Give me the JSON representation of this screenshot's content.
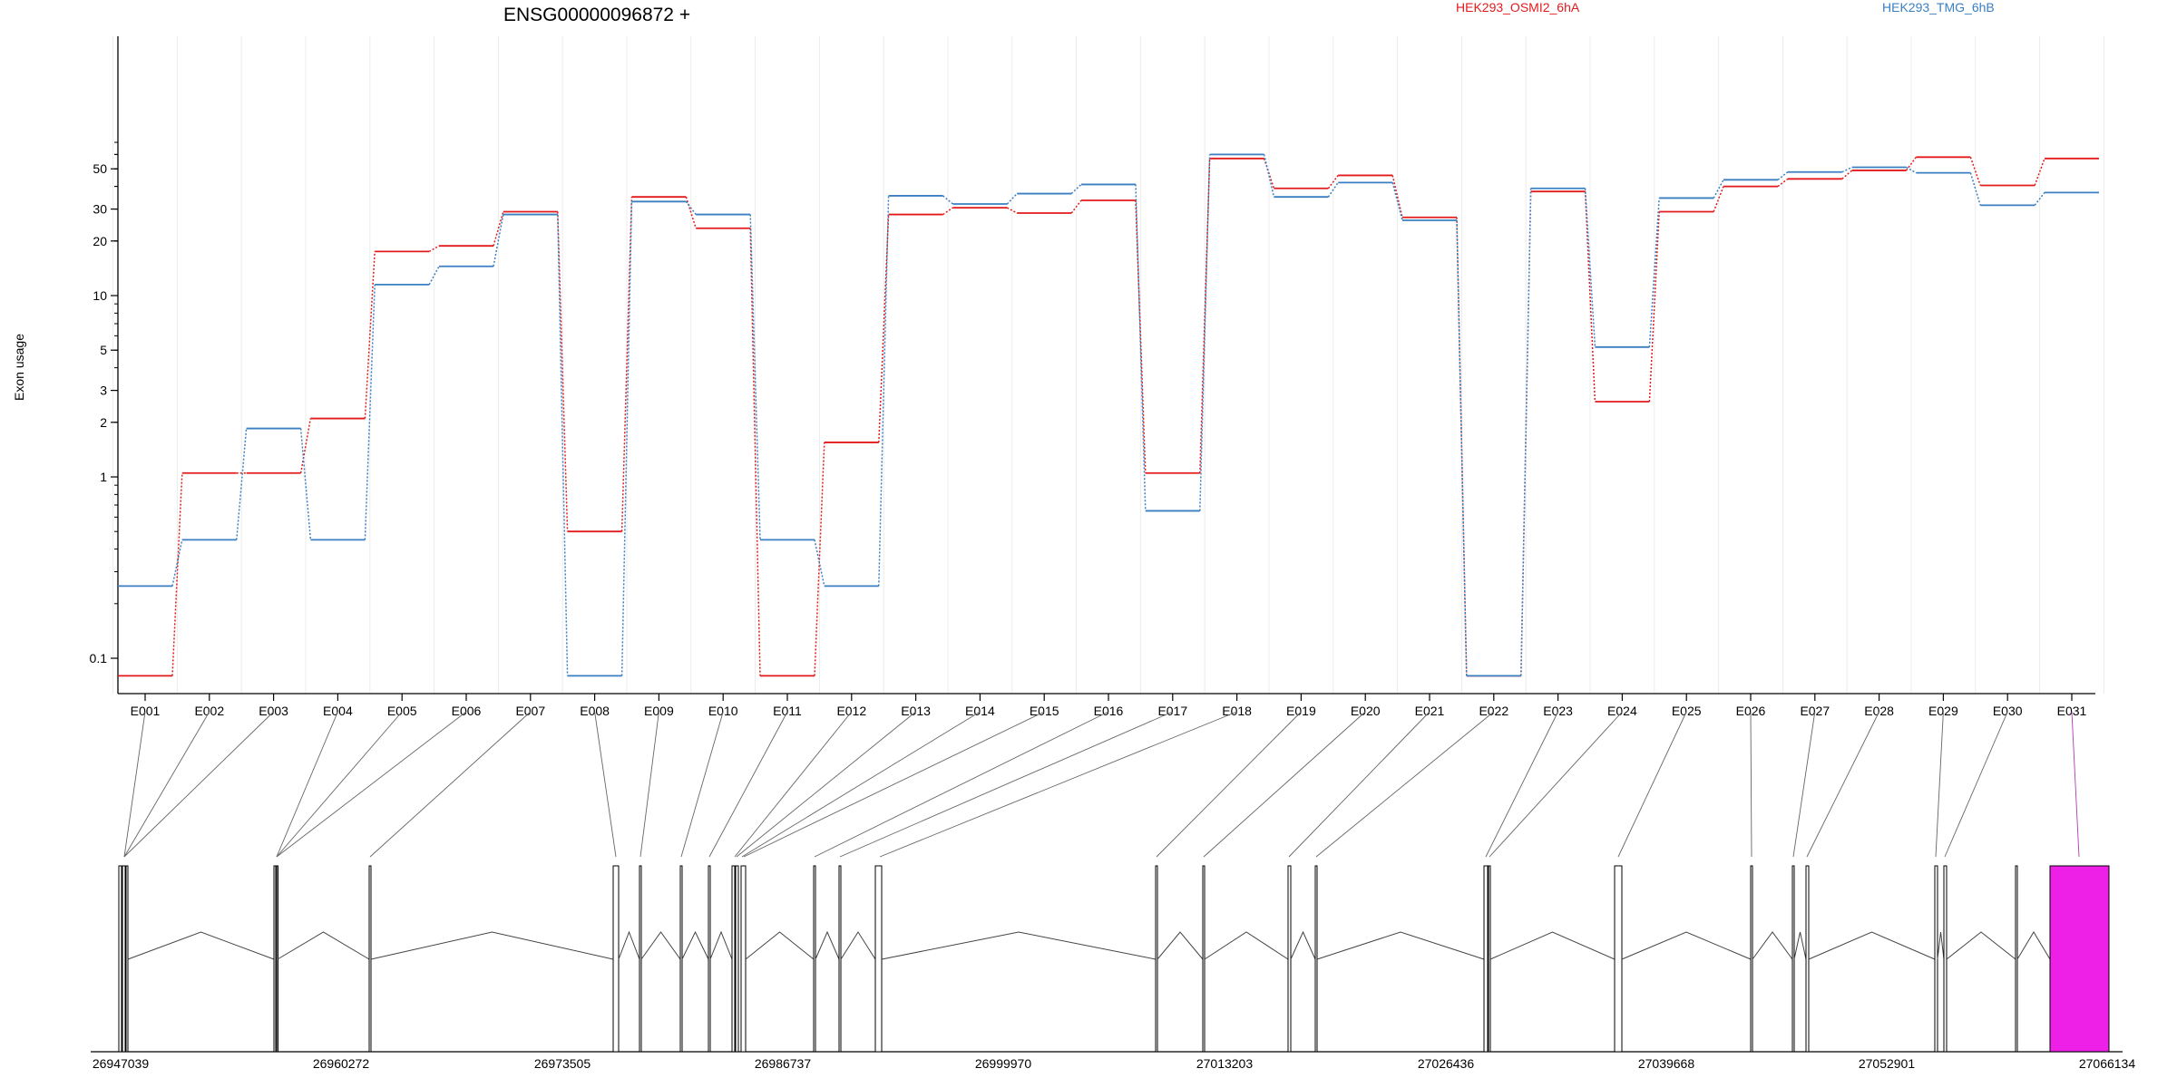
{
  "chart_data": {
    "type": "line",
    "title": "ENSG00000096872 +",
    "ylabel": "Exon usage",
    "xlabel": "",
    "y_scale": "log",
    "ylim": [
      0.08,
      70
    ],
    "y_ticks": [
      0.1,
      1,
      2,
      3,
      5,
      10,
      20,
      30,
      50
    ],
    "y_tick_labels": [
      "0.1",
      "1",
      "2",
      "3",
      "5",
      "10",
      "20",
      "30",
      "50"
    ],
    "grid": "vertical",
    "legend_position": "top",
    "categories": [
      "E001",
      "E002",
      "E003",
      "E004",
      "E005",
      "E006",
      "E007",
      "E008",
      "E009",
      "E010",
      "E011",
      "E012",
      "E013",
      "E014",
      "E015",
      "E016",
      "E017",
      "E018",
      "E019",
      "E020",
      "E021",
      "E022",
      "E023",
      "E024",
      "E025",
      "E026",
      "E027",
      "E028",
      "E029",
      "E030",
      "E031"
    ],
    "series": [
      {
        "name": "HEK293_OSMI2_6hA",
        "color": "#e31a1c",
        "values": [
          0.08,
          1.05,
          1.05,
          2.1,
          17.5,
          18.8,
          29.0,
          0.5,
          35.0,
          23.5,
          0.08,
          1.55,
          28.0,
          30.5,
          28.5,
          33.5,
          1.05,
          57.0,
          39.0,
          46.0,
          27.0,
          0.08,
          37.5,
          2.6,
          29.0,
          40.0,
          44.0,
          49.0,
          58.0,
          40.5,
          57.0
        ]
      },
      {
        "name": "HEK293_TMG_6hB",
        "color": "#3a7fc1",
        "values": [
          0.25,
          0.45,
          1.85,
          0.45,
          11.5,
          14.5,
          28.0,
          0.08,
          33.0,
          28.0,
          0.45,
          0.25,
          35.5,
          32.0,
          36.5,
          41.0,
          0.65,
          60.0,
          35.0,
          42.0,
          26.0,
          0.08,
          39.0,
          5.2,
          34.5,
          43.5,
          48.0,
          51.0,
          47.5,
          31.5,
          37.0
        ]
      }
    ],
    "gene_model": {
      "coordinate_labels": [
        "26947039",
        "26960272",
        "26973505",
        "26986737",
        "26999970",
        "27013203",
        "27026436",
        "27039668",
        "27052901",
        "27066134"
      ],
      "highlight_color": "#ee1fe6"
    }
  }
}
